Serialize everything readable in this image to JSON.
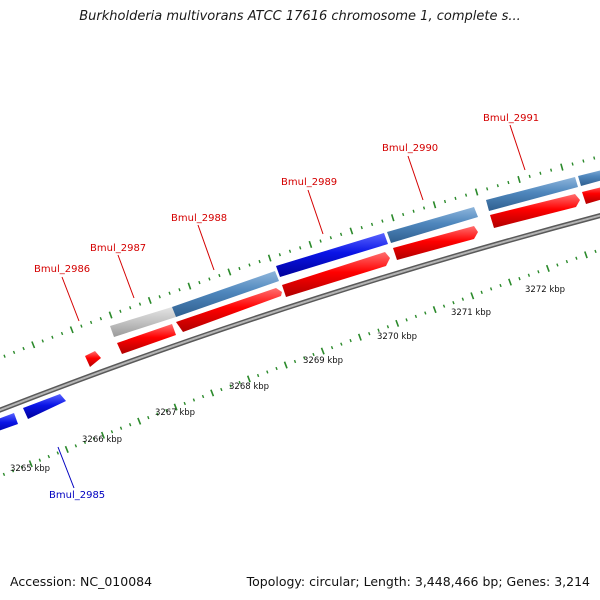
{
  "title": "Burkholderia multivorans ATCC 17616 chromosome 1, complete s...",
  "footer": {
    "accession": "Accession: NC_010084",
    "summary": "Topology: circular; Length: 3,448,466 bp; Genes: 3,214"
  },
  "colors": {
    "label_red": "#d40000",
    "label_blue": "#0000c0",
    "cds_red": "#ff0000",
    "gene_steel": "#4f87bd",
    "gene_blue": "#0a14e6",
    "gene_gray": "#c2c2c2",
    "tick_green": "#2b8a2b",
    "backbone": "#8a8a8a"
  },
  "gene_labels": [
    "Bmul_2985",
    "Bmul_2986",
    "Bmul_2987",
    "Bmul_2988",
    "Bmul_2989",
    "Bmul_2990",
    "Bmul_2991"
  ],
  "scale_labels": [
    "3265 kbp",
    "3266 kbp",
    "3267 kbp",
    "3268 kbp",
    "3269 kbp",
    "3270 kbp",
    "3271 kbp",
    "3272 kbp"
  ]
}
